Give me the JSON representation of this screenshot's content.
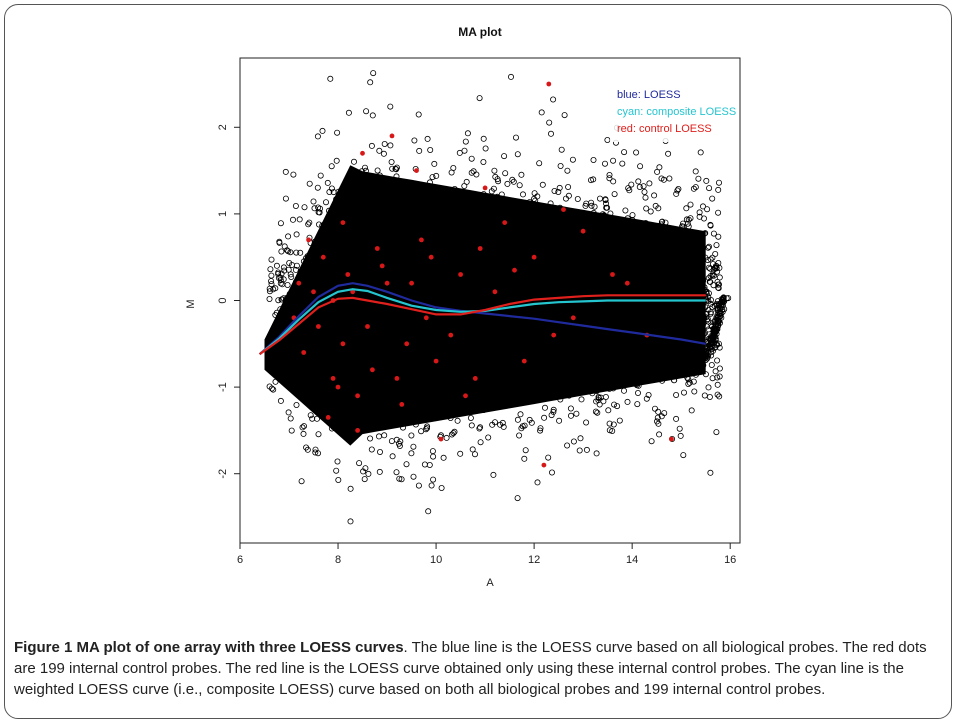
{
  "chart_data": {
    "type": "scatter",
    "title": "MA plot",
    "xlabel": "A",
    "ylabel": "M",
    "xlim": [
      6,
      16.2
    ],
    "ylim": [
      -2.8,
      2.8
    ],
    "x_ticks": [
      6,
      8,
      10,
      12,
      14,
      16
    ],
    "y_ticks": [
      -2,
      -1,
      0,
      1,
      2
    ],
    "legend_position": "top-right",
    "legend": [
      {
        "label": "blue: LOESS",
        "color": "#1f2a9c"
      },
      {
        "label": "cyan: composite LOESS",
        "color": "#25c5cf"
      },
      {
        "label": "red: control LOESS",
        "color": "#e0201c"
      }
    ],
    "colors": {
      "points": "#000000",
      "control_points": "#d81818",
      "blue": "#1f2a9c",
      "cyan": "#25c5cf",
      "red": "#e0201c"
    },
    "series": [
      {
        "name": "blue: LOESS",
        "type": "line",
        "x": [
          6.4,
          6.8,
          7.2,
          7.6,
          8.0,
          8.3,
          8.6,
          9.0,
          9.5,
          10.0,
          10.5,
          11.0,
          11.5,
          12.0,
          12.5,
          13.0,
          13.5,
          14.0,
          14.5,
          15.0,
          15.5
        ],
        "y": [
          -0.62,
          -0.42,
          -0.18,
          0.04,
          0.17,
          0.2,
          0.17,
          0.1,
          0.0,
          -0.08,
          -0.12,
          -0.15,
          -0.18,
          -0.21,
          -0.25,
          -0.29,
          -0.33,
          -0.37,
          -0.41,
          -0.45,
          -0.5
        ]
      },
      {
        "name": "cyan: composite LOESS",
        "type": "line",
        "x": [
          6.4,
          6.8,
          7.2,
          7.6,
          8.0,
          8.3,
          8.6,
          9.0,
          9.5,
          10.0,
          10.5,
          11.0,
          11.5,
          12.0,
          12.5,
          13.0,
          13.5,
          14.0,
          14.5,
          15.0,
          15.5
        ],
        "y": [
          -0.62,
          -0.44,
          -0.22,
          -0.02,
          0.1,
          0.13,
          0.11,
          0.03,
          -0.06,
          -0.11,
          -0.13,
          -0.12,
          -0.08,
          -0.04,
          -0.02,
          -0.01,
          0.0,
          0.0,
          0.0,
          0.0,
          0.0
        ]
      },
      {
        "name": "red: control LOESS",
        "type": "line",
        "x": [
          6.4,
          6.8,
          7.2,
          7.6,
          8.0,
          8.3,
          8.6,
          9.0,
          9.5,
          10.0,
          10.5,
          11.0,
          11.5,
          12.0,
          12.5,
          13.0,
          13.5,
          14.0,
          14.5,
          15.0,
          15.5
        ],
        "y": [
          -0.62,
          -0.46,
          -0.27,
          -0.08,
          0.02,
          0.03,
          0.0,
          -0.04,
          -0.1,
          -0.16,
          -0.16,
          -0.11,
          -0.04,
          0.01,
          0.03,
          0.05,
          0.06,
          0.06,
          0.06,
          0.06,
          0.06
        ]
      },
      {
        "type": "scatter",
        "x": [
          12.3,
          9.1,
          8.5,
          7.4,
          8.1,
          9.6,
          11.0,
          12.6,
          13.0,
          14.8,
          10.1,
          8.4,
          7.8,
          9.3,
          10.6,
          11.8,
          12.2,
          7.2,
          8.9,
          9.9,
          10.9,
          8.2,
          7.6,
          9.4,
          11.4,
          8.7,
          7.9,
          10.3,
          12.8,
          8.3,
          9.0,
          7.3,
          13.6,
          8.6,
          10.0,
          7.7,
          9.7,
          11.6,
          8.0,
          7.5,
          12.4,
          9.2,
          8.8,
          10.8,
          7.1,
          13.9,
          9.5,
          8.1,
          11.2,
          7.9,
          10.5,
          8.4,
          9.8,
          12.0,
          14.3
        ],
        "y": [
          2.5,
          1.9,
          1.7,
          0.7,
          0.9,
          1.5,
          1.3,
          1.05,
          0.8,
          -1.6,
          -1.6,
          -1.5,
          -1.35,
          -1.2,
          -1.1,
          -0.7,
          -1.9,
          0.2,
          0.4,
          0.5,
          0.6,
          0.3,
          -0.3,
          -0.5,
          0.9,
          -0.8,
          -0.9,
          -0.4,
          -0.2,
          0.1,
          0.2,
          -0.6,
          0.3,
          -0.3,
          -0.7,
          0.5,
          0.7,
          0.35,
          -1.0,
          0.1,
          -0.4,
          -0.9,
          0.6,
          -0.9,
          -0.2,
          0.2,
          0.2,
          -0.5,
          0.1,
          0.0,
          0.3,
          -1.1,
          -0.2,
          0.5,
          -0.4
        ]
      }
    ]
  },
  "caption": {
    "label": "Figure 1",
    "title": "MA plot of one array with three LOESS curves",
    "text": ". The blue line is the LOESS curve based on all biological probes. The red dots are 199 internal control probes. The red line is the LOESS curve obtained only using these internal control probes. The cyan line is the weighted LOESS curve (i.e., composite LOESS) curve based on both all biological probes and 199 internal control probes."
  }
}
